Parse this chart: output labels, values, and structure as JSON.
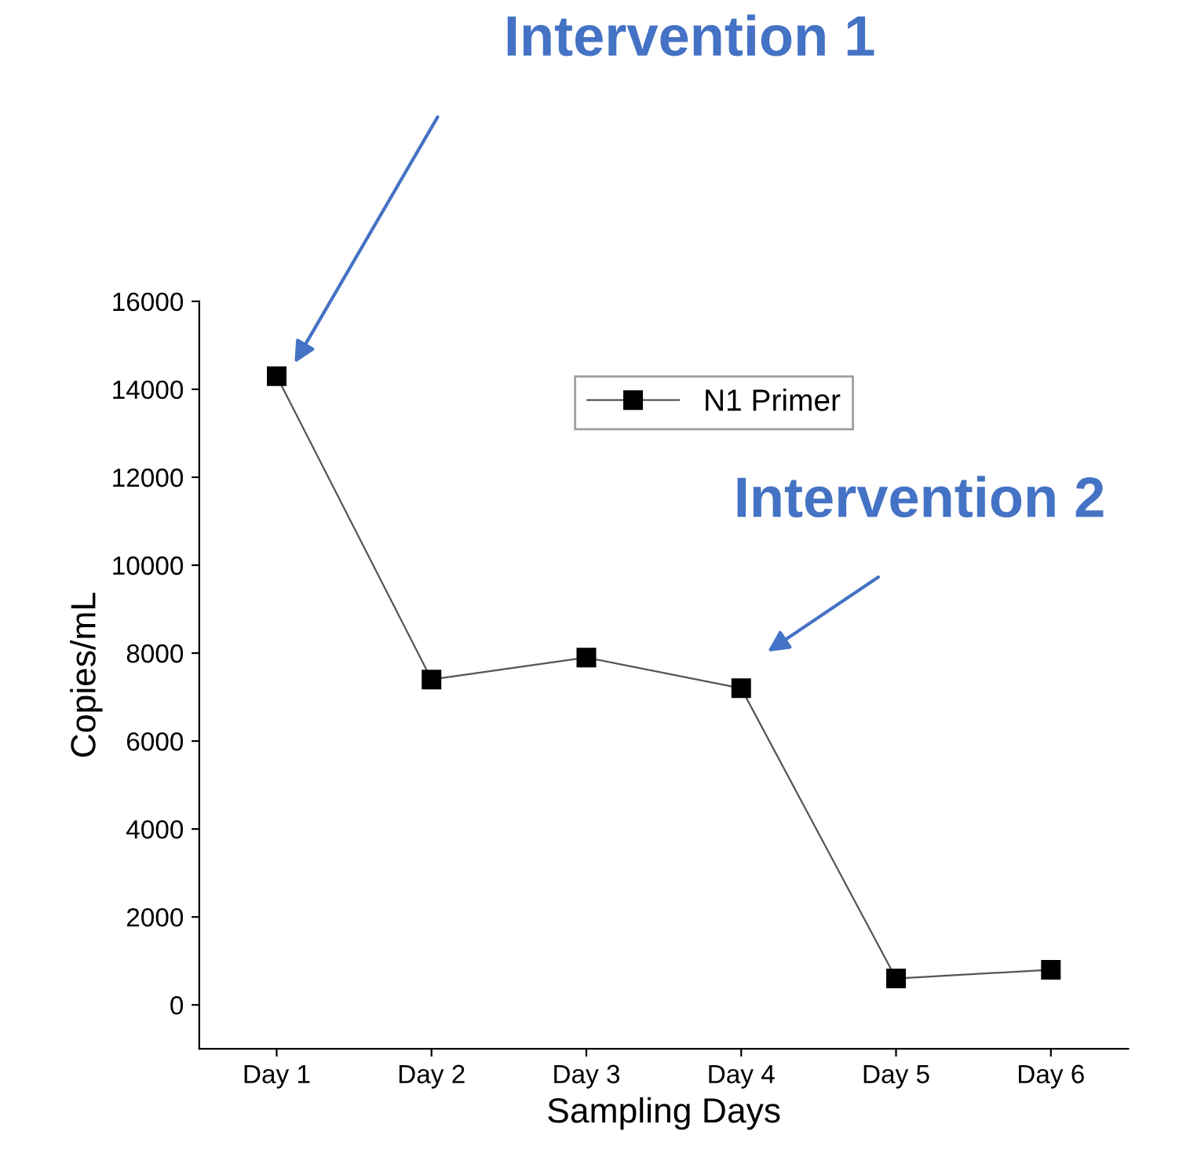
{
  "chart_data": {
    "type": "line",
    "xlabel": "Sampling Days",
    "ylabel": "Copies/mL",
    "categories": [
      "Day 1",
      "Day 2",
      "Day 3",
      "Day 4",
      "Day 5",
      "Day 6"
    ],
    "series": [
      {
        "name": "N1 Primer",
        "color": "#000000",
        "values": [
          14300,
          7400,
          7900,
          7200,
          600,
          800
        ]
      }
    ],
    "ylim": [
      -1000,
      16000
    ],
    "yticks": [
      0,
      2000,
      4000,
      6000,
      8000,
      10000,
      12000,
      14000,
      16000
    ],
    "marker": "square",
    "line_style": "solid",
    "legend": "top right",
    "grid": false,
    "annotations": [
      "Intervention 1",
      "Intervention 2"
    ]
  }
}
